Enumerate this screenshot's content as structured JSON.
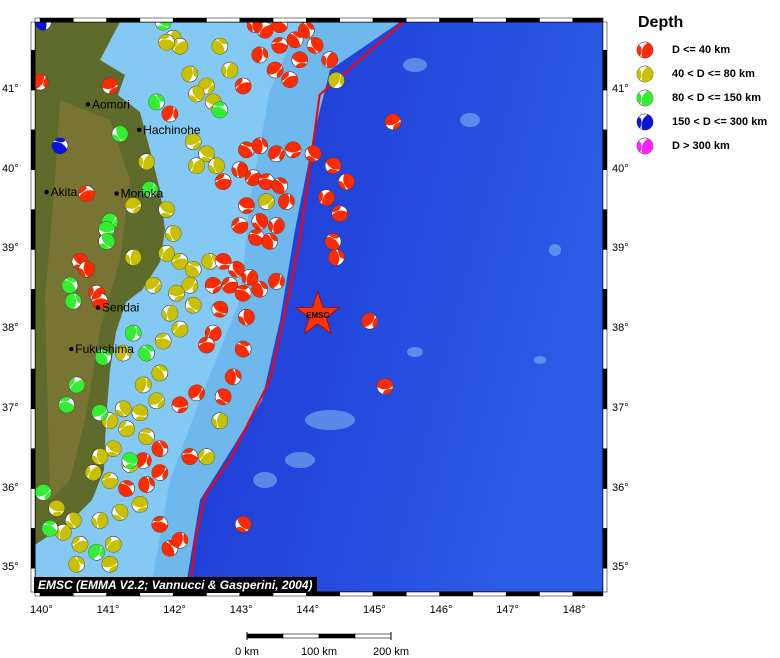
{
  "legend": {
    "title": "Depth",
    "items": [
      {
        "label": "D <= 40 km",
        "color": "#ff2a00"
      },
      {
        "label": "40 < D <= 80 km",
        "color": "#c8c000"
      },
      {
        "label": "80 < D <= 150 km",
        "color": "#33ee33"
      },
      {
        "label": "150 < D <= 300 km",
        "color": "#0a14d8"
      },
      {
        "label": "D > 300 km",
        "color": "#ff22ff"
      }
    ]
  },
  "credit": "EMSC (EMMA V2.2; Vannucci & Gasperini, 2004)",
  "axes": {
    "lon_ticks": [
      "140°",
      "141°",
      "142°",
      "143°",
      "144°",
      "145°",
      "146°",
      "147°",
      "148°"
    ],
    "lat_ticks": [
      "35°",
      "36°",
      "37°",
      "38°",
      "39°",
      "40°",
      "41°"
    ],
    "lon_range": [
      139.92,
      148.45
    ],
    "lat_range": [
      34.7,
      41.85
    ]
  },
  "scale_bar": {
    "labels": [
      "0 km",
      "100 km",
      "200 km"
    ]
  },
  "cities": [
    {
      "name": "Aomori",
      "lon": 140.72,
      "lat": 40.82
    },
    {
      "name": "Hachinohe",
      "lon": 141.49,
      "lat": 40.5
    },
    {
      "name": "Akita",
      "lon": 140.1,
      "lat": 39.72
    },
    {
      "name": "Morioka",
      "lon": 141.15,
      "lat": 39.7
    },
    {
      "name": "Sendai",
      "lon": 140.87,
      "lat": 38.27
    },
    {
      "name": "Fukushima",
      "lon": 140.47,
      "lat": 37.75
    }
  ],
  "epicenter": {
    "label": "EMSC",
    "lon": 144.17,
    "lat": 38.18,
    "color": "#ff3300"
  },
  "trench": {
    "color": "#ff0000",
    "points": [
      [
        145.45,
        41.85
      ],
      [
        144.2,
        40.94
      ],
      [
        143.9,
        39.12
      ],
      [
        143.75,
        38.49
      ],
      [
        143.45,
        37.36
      ],
      [
        142.85,
        36.36
      ],
      [
        142.48,
        35.92
      ],
      [
        142.33,
        35.35
      ],
      [
        142.25,
        34.7
      ]
    ]
  },
  "events": [
    [
      143.23,
      41.82,
      "r"
    ],
    [
      143.38,
      41.75,
      "r"
    ],
    [
      143.6,
      41.56,
      "r"
    ],
    [
      143.83,
      41.63,
      "r"
    ],
    [
      143.3,
      41.44,
      "r"
    ],
    [
      143.53,
      41.25,
      "r"
    ],
    [
      143.9,
      41.38,
      "r"
    ],
    [
      144.13,
      41.56,
      "r"
    ],
    [
      144.35,
      41.38,
      "r"
    ],
    [
      143.75,
      41.13,
      "r"
    ],
    [
      143.6,
      41.82,
      "r"
    ],
    [
      144.0,
      41.75,
      "r"
    ],
    [
      144.45,
      41.12,
      "y"
    ],
    [
      145.3,
      40.6,
      "r"
    ],
    [
      144.4,
      40.05,
      "r"
    ],
    [
      144.6,
      39.85,
      "r"
    ],
    [
      144.3,
      39.65,
      "r"
    ],
    [
      144.5,
      39.45,
      "r"
    ],
    [
      144.4,
      39.1,
      "r"
    ],
    [
      144.45,
      38.9,
      "r"
    ],
    [
      144.95,
      38.1,
      "r"
    ],
    [
      145.18,
      37.28,
      "r"
    ],
    [
      143.05,
      35.55,
      "r"
    ],
    [
      142.0,
      41.65,
      "y"
    ],
    [
      142.1,
      41.55,
      "y"
    ],
    [
      141.9,
      41.6,
      "y"
    ],
    [
      142.7,
      41.55,
      "y"
    ],
    [
      142.25,
      41.2,
      "y"
    ],
    [
      142.5,
      41.05,
      "y"
    ],
    [
      142.6,
      40.85,
      "y"
    ],
    [
      142.35,
      40.95,
      "y"
    ],
    [
      142.85,
      41.25,
      "y"
    ],
    [
      143.05,
      41.05,
      "r"
    ],
    [
      142.7,
      40.75,
      "g"
    ],
    [
      141.75,
      40.85,
      "g"
    ],
    [
      141.95,
      40.7,
      "r"
    ],
    [
      142.3,
      40.35,
      "y"
    ],
    [
      142.5,
      40.2,
      "y"
    ],
    [
      142.65,
      40.05,
      "y"
    ],
    [
      142.35,
      40.05,
      "y"
    ],
    [
      142.75,
      39.85,
      "r"
    ],
    [
      143.1,
      40.25,
      "r"
    ],
    [
      143.3,
      40.3,
      "r"
    ],
    [
      143.55,
      40.2,
      "r"
    ],
    [
      143.8,
      40.25,
      "r"
    ],
    [
      144.1,
      40.2,
      "r"
    ],
    [
      143.0,
      40.0,
      "r"
    ],
    [
      143.2,
      39.9,
      "r"
    ],
    [
      143.4,
      39.85,
      "r"
    ],
    [
      143.6,
      39.8,
      "r"
    ],
    [
      143.7,
      39.6,
      "r"
    ],
    [
      143.4,
      39.6,
      "y"
    ],
    [
      143.1,
      39.55,
      "r"
    ],
    [
      143.3,
      39.35,
      "r"
    ],
    [
      143.55,
      39.3,
      "r"
    ],
    [
      143.0,
      39.3,
      "r"
    ],
    [
      143.25,
      39.15,
      "r"
    ],
    [
      143.45,
      39.1,
      "r"
    ],
    [
      141.65,
      39.75,
      "g"
    ],
    [
      141.4,
      39.55,
      "y"
    ],
    [
      141.9,
      39.5,
      "y"
    ],
    [
      142.0,
      39.2,
      "y"
    ],
    [
      141.9,
      38.95,
      "y"
    ],
    [
      142.1,
      38.85,
      "y"
    ],
    [
      142.3,
      38.75,
      "y"
    ],
    [
      142.55,
      38.85,
      "y"
    ],
    [
      142.25,
      38.55,
      "y"
    ],
    [
      142.05,
      38.45,
      "y"
    ],
    [
      142.3,
      38.3,
      "y"
    ],
    [
      141.95,
      38.2,
      "y"
    ],
    [
      142.1,
      38.0,
      "y"
    ],
    [
      141.85,
      37.85,
      "y"
    ],
    [
      141.6,
      37.7,
      "g"
    ],
    [
      141.4,
      37.95,
      "g"
    ],
    [
      141.7,
      38.55,
      "y"
    ],
    [
      142.75,
      38.85,
      "r"
    ],
    [
      142.95,
      38.75,
      "r"
    ],
    [
      143.15,
      38.65,
      "r"
    ],
    [
      142.85,
      38.55,
      "r"
    ],
    [
      143.05,
      38.45,
      "r"
    ],
    [
      143.3,
      38.5,
      "r"
    ],
    [
      143.55,
      38.6,
      "r"
    ],
    [
      142.6,
      38.55,
      "r"
    ],
    [
      142.7,
      38.25,
      "r"
    ],
    [
      143.1,
      38.15,
      "r"
    ],
    [
      142.6,
      37.95,
      "r"
    ],
    [
      142.5,
      37.8,
      "r"
    ],
    [
      143.05,
      37.75,
      "r"
    ],
    [
      142.9,
      37.4,
      "r"
    ],
    [
      142.35,
      37.2,
      "r"
    ],
    [
      142.1,
      37.05,
      "r"
    ],
    [
      142.75,
      37.15,
      "r"
    ],
    [
      142.7,
      36.85,
      "y"
    ],
    [
      142.5,
      36.4,
      "y"
    ],
    [
      142.25,
      36.4,
      "r"
    ],
    [
      141.8,
      37.45,
      "y"
    ],
    [
      141.55,
      37.3,
      "y"
    ],
    [
      141.75,
      37.1,
      "y"
    ],
    [
      141.5,
      36.95,
      "y"
    ],
    [
      141.25,
      37.0,
      "y"
    ],
    [
      141.05,
      36.85,
      "y"
    ],
    [
      141.3,
      36.75,
      "y"
    ],
    [
      141.6,
      36.65,
      "y"
    ],
    [
      141.8,
      36.5,
      "r"
    ],
    [
      141.55,
      36.35,
      "r"
    ],
    [
      141.35,
      36.3,
      "y"
    ],
    [
      141.1,
      36.5,
      "y"
    ],
    [
      140.9,
      36.4,
      "y"
    ],
    [
      140.8,
      36.2,
      "y"
    ],
    [
      141.05,
      36.1,
      "y"
    ],
    [
      141.3,
      36.0,
      "r"
    ],
    [
      141.6,
      36.05,
      "r"
    ],
    [
      141.8,
      36.2,
      "r"
    ],
    [
      141.5,
      35.8,
      "y"
    ],
    [
      141.2,
      35.7,
      "y"
    ],
    [
      140.9,
      35.6,
      "y"
    ],
    [
      141.1,
      35.3,
      "y"
    ],
    [
      141.8,
      35.55,
      "r"
    ],
    [
      141.95,
      35.25,
      "r"
    ],
    [
      142.1,
      35.35,
      "r"
    ],
    [
      140.05,
      35.95,
      "g"
    ],
    [
      140.25,
      35.75,
      "y"
    ],
    [
      140.5,
      35.6,
      "y"
    ],
    [
      140.35,
      35.45,
      "y"
    ],
    [
      140.6,
      35.3,
      "y"
    ],
    [
      140.15,
      35.5,
      "g"
    ],
    [
      140.55,
      35.05,
      "y"
    ],
    [
      140.85,
      35.2,
      "g"
    ],
    [
      141.05,
      35.05,
      "y"
    ],
    [
      140.6,
      38.85,
      "r"
    ],
    [
      140.7,
      38.75,
      "r"
    ],
    [
      140.85,
      38.45,
      "r"
    ],
    [
      140.9,
      38.35,
      "r"
    ],
    [
      140.45,
      38.55,
      "g"
    ],
    [
      140.5,
      38.35,
      "g"
    ],
    [
      141.05,
      39.35,
      "g"
    ],
    [
      141.0,
      39.25,
      "g"
    ],
    [
      141.0,
      39.1,
      "g"
    ],
    [
      141.4,
      38.9,
      "y"
    ],
    [
      140.55,
      37.3,
      "g"
    ],
    [
      140.4,
      37.05,
      "g"
    ],
    [
      140.95,
      37.65,
      "g"
    ],
    [
      141.25,
      37.7,
      "y"
    ],
    [
      140.9,
      36.95,
      "g"
    ],
    [
      141.35,
      36.35,
      "g"
    ],
    [
      141.2,
      40.45,
      "g"
    ],
    [
      141.6,
      40.1,
      "y"
    ],
    [
      140.7,
      39.7,
      "r"
    ],
    [
      140.3,
      40.3,
      "b"
    ],
    [
      140.05,
      41.85,
      "b"
    ],
    [
      140.0,
      41.1,
      "r"
    ],
    [
      141.05,
      41.05,
      "r"
    ],
    [
      141.85,
      41.85,
      "g"
    ]
  ]
}
